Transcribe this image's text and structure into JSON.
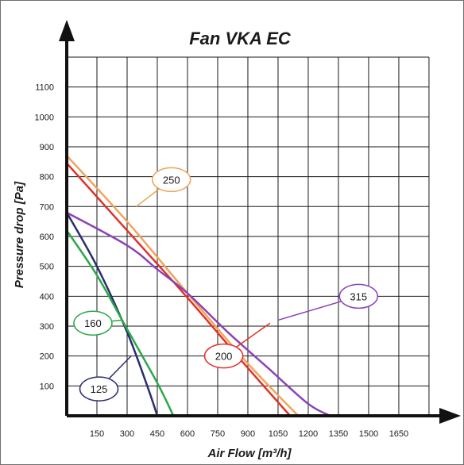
{
  "chart_data": {
    "type": "line",
    "title": "Fan VKA EC",
    "xlabel": "Air Flow [m³/h]",
    "ylabel": "Pressure drop [Pa]",
    "xlim": [
      0,
      1800
    ],
    "ylim": [
      0,
      1200
    ],
    "x_ticks": [
      150,
      300,
      450,
      600,
      750,
      900,
      1050,
      1200,
      1350,
      1500,
      1650
    ],
    "y_ticks": [
      100,
      200,
      300,
      400,
      500,
      600,
      700,
      800,
      900,
      1000,
      1100
    ],
    "grid": true,
    "legend": "callout labels on curves",
    "series": [
      {
        "name": "125",
        "color": "#2b2d6e",
        "points": [
          [
            0,
            680
          ],
          [
            150,
            500
          ],
          [
            300,
            280
          ],
          [
            400,
            100
          ],
          [
            450,
            0
          ]
        ],
        "label_at": [
          160,
          90
        ],
        "leader_to": [
          320,
          200
        ]
      },
      {
        "name": "160",
        "color": "#2aa84a",
        "points": [
          [
            0,
            620
          ],
          [
            150,
            470
          ],
          [
            300,
            290
          ],
          [
            450,
            110
          ],
          [
            530,
            0
          ]
        ],
        "label_at": [
          130,
          310
        ],
        "leader_to": [
          270,
          320
        ]
      },
      {
        "name": "200",
        "color": "#e0322a",
        "points": [
          [
            0,
            845
          ],
          [
            300,
            620
          ],
          [
            600,
            395
          ],
          [
            900,
            160
          ],
          [
            1110,
            0
          ]
        ],
        "label_at": [
          780,
          200
        ],
        "leader_to": [
          1010,
          310
        ]
      },
      {
        "name": "250",
        "color": "#f0a45a",
        "points": [
          [
            0,
            870
          ],
          [
            300,
            650
          ],
          [
            600,
            410
          ],
          [
            900,
            175
          ],
          [
            1150,
            0
          ]
        ],
        "label_at": [
          520,
          790
        ],
        "leader_to": [
          345,
          700
        ]
      },
      {
        "name": "315",
        "color": "#8a44b6",
        "points": [
          [
            0,
            680
          ],
          [
            300,
            570
          ],
          [
            450,
            490
          ],
          [
            600,
            410
          ],
          [
            800,
            280
          ],
          [
            1000,
            160
          ],
          [
            1200,
            40
          ],
          [
            1310,
            0
          ]
        ],
        "label_at": [
          1450,
          400
        ],
        "leader_to": [
          1050,
          320
        ]
      }
    ]
  },
  "colors": {
    "axis": "#111111",
    "grid": "#1a1a1a",
    "border": "#6f6f6f"
  }
}
